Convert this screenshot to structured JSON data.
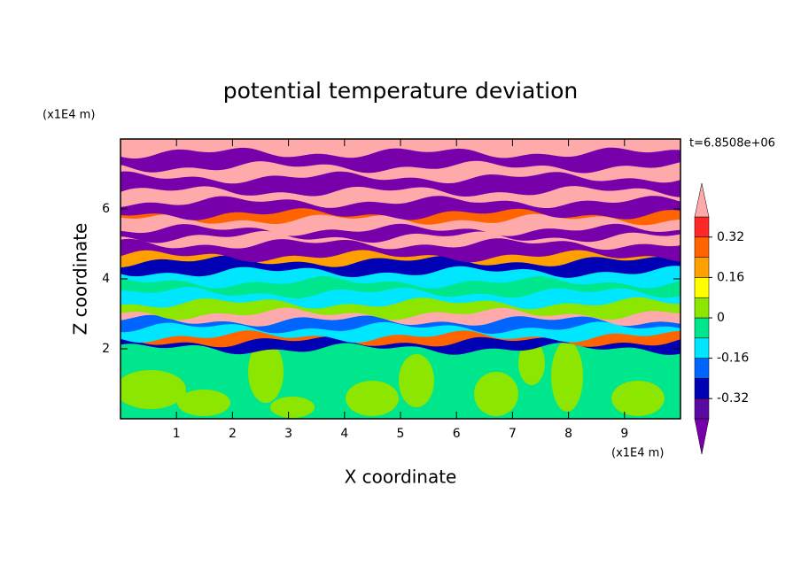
{
  "chart_data": {
    "type": "contour",
    "title": "potential temperature deviation",
    "x_label": "X coordinate",
    "y_label": "Z coordinate",
    "x_unit": "(x1E4 m)",
    "y_unit": "(x1E4 m)",
    "annotation": "t=6.8508e+06",
    "xlim": [
      0,
      10
    ],
    "xticks": [
      1,
      2,
      3,
      4,
      5,
      6,
      7,
      8,
      9
    ],
    "ylim": [
      0,
      8
    ],
    "yticks": [
      2,
      4,
      6
    ],
    "colorbar": {
      "levels": [
        -0.4,
        -0.32,
        -0.24,
        -0.16,
        -0.08,
        0,
        0.08,
        0.16,
        0.24,
        0.32,
        0.4
      ],
      "colors": [
        "#5a0aa0",
        "#0000b4",
        "#0064ff",
        "#00e6ff",
        "#00e68c",
        "#8ce600",
        "#ffff00",
        "#ffa000",
        "#ff6400",
        "#ff2828"
      ],
      "under_color": "#7800aa",
      "over_color": "#ffaaaa",
      "ticks": [
        -0.32,
        -0.16,
        0,
        0.16,
        0.32
      ]
    }
  }
}
